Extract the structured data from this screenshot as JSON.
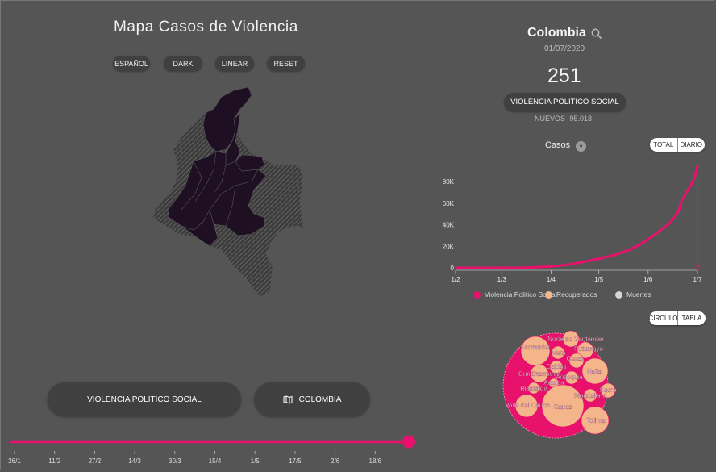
{
  "header": {
    "title": "Mapa Casos de Violencia"
  },
  "controls": [
    {
      "label": "ESPAÑOL"
    },
    {
      "label": "DARK"
    },
    {
      "label": "LINEAR"
    },
    {
      "label": "RESET"
    }
  ],
  "bottom_buttons": {
    "category_label": "VIOLENCIA POLITICO SOCIAL",
    "region_label": "COLOMBIA"
  },
  "timeline": {
    "ticks": [
      "26/1",
      "11/2",
      "27/2",
      "14/3",
      "30/3",
      "15/4",
      "1/5",
      "17/5",
      "2/6",
      "18/6"
    ],
    "progress": 1.0
  },
  "summary": {
    "country": "Colombia",
    "date": "01/07/2020",
    "count": "251",
    "category": "VIOLENCIA POLITICO SOCIAL",
    "new_cases": "NUEVOS -95.018"
  },
  "metric": {
    "label": "Casos"
  },
  "mode_toggle": {
    "total": "TOTAL",
    "daily": "DIARIO"
  },
  "view_toggle": {
    "circle": "CÍRCULO",
    "table": "TABLA"
  },
  "chart_data": {
    "type": "line",
    "y_ticks": [
      "0",
      "20K",
      "40K",
      "60K",
      "80K"
    ],
    "x_ticks": [
      "1/2",
      "1/3",
      "1/4",
      "1/5",
      "1/6",
      "1/7"
    ],
    "ylim": [
      0,
      95000
    ],
    "series": [
      {
        "name": "Violencia Politico Social",
        "color": "#e8116c",
        "x": [
          0,
          15,
          29,
          40,
          50,
          60,
          68,
          75,
          82,
          90,
          100,
          108,
          115,
          121,
          129,
          135,
          140,
          142,
          146,
          150,
          152
        ],
        "values": [
          0,
          0,
          0,
          100,
          500,
          1200,
          2500,
          4000,
          6000,
          8500,
          12000,
          16000,
          21000,
          26500,
          35000,
          42000,
          52000,
          62000,
          72000,
          83000,
          95000
        ]
      }
    ],
    "legend": [
      "Violencia Politico Social",
      "Recuperados",
      "Muertes"
    ],
    "legend_colors": [
      "#e8116c",
      "#f5b58a",
      "#d6d6d6"
    ]
  },
  "bubble_chart": {
    "regions": [
      {
        "name": "Norte de Santander"
      },
      {
        "name": "Santander"
      },
      {
        "name": "Meta"
      },
      {
        "name": "Putumayo"
      },
      {
        "name": "Cesar"
      },
      {
        "name": "Caldas"
      },
      {
        "name": "Huila"
      },
      {
        "name": "Cundinamarca"
      },
      {
        "name": "Antioquia"
      },
      {
        "name": "Arauca"
      },
      {
        "name": "Risaralda"
      },
      {
        "name": "Sucre"
      },
      {
        "name": "Magdalena"
      },
      {
        "name": "Valle del Cauca"
      },
      {
        "name": "Cauca"
      },
      {
        "name": "Tolima"
      }
    ]
  },
  "colors": {
    "accent": "#e8116c",
    "bubble": "#f5b58a",
    "background": "#555555",
    "pill": "#404040"
  }
}
